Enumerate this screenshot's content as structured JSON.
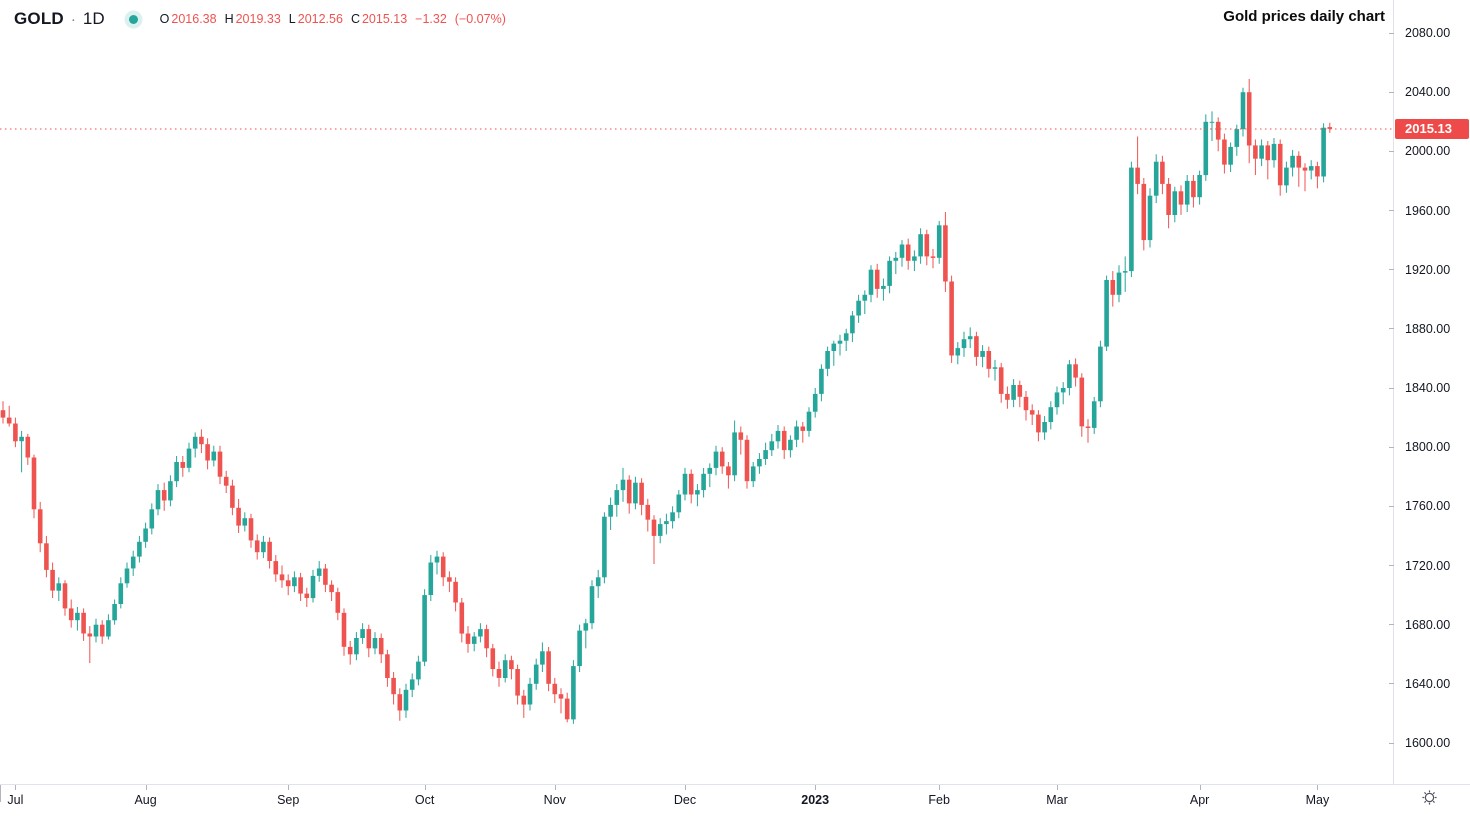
{
  "header": {
    "symbol": "GOLD",
    "separator": "·",
    "interval": "1D",
    "ohlc": {
      "open_label": "O",
      "open": "2016.38",
      "high_label": "H",
      "high": "2019.33",
      "low_label": "L",
      "low": "2012.56",
      "close_label": "C",
      "close": "2015.13",
      "change": "−1.32",
      "change_pct": "(−0.07%)"
    }
  },
  "title": "Gold prices daily chart",
  "colors": {
    "up": "#26a69a",
    "down": "#ef5350",
    "accent_red": "#ef4a4a",
    "text": "#131722",
    "muted": "#787b86",
    "axis_border": "#e0e3eb",
    "tick": "#b2b5be"
  },
  "price_axis": {
    "current_price_label": "2015.13"
  },
  "chart_data": {
    "type": "candlestick",
    "title": "Gold prices daily chart",
    "symbol": "GOLD",
    "interval": "1D",
    "current_price": 2015.13,
    "ylim": [
      1600,
      2080
    ],
    "grid": false,
    "price_ticks": [
      "2080.00",
      "2040.00",
      "2000.00",
      "1960.00",
      "1920.00",
      "1880.00",
      "1840.00",
      "1800.00",
      "1760.00",
      "1720.00",
      "1680.00",
      "1640.00",
      "1600.00"
    ],
    "months": [
      {
        "label": "Jul",
        "index": 2
      },
      {
        "label": "Aug",
        "index": 23
      },
      {
        "label": "Sep",
        "index": 46
      },
      {
        "label": "Oct",
        "index": 68
      },
      {
        "label": "Nov",
        "index": 89
      },
      {
        "label": "Dec",
        "index": 110
      },
      {
        "label": "2023",
        "index": 131,
        "bold": true
      },
      {
        "label": "Feb",
        "index": 151
      },
      {
        "label": "Mar",
        "index": 170
      },
      {
        "label": "Apr",
        "index": 193
      },
      {
        "label": "May",
        "index": 212
      }
    ],
    "ohlc": [
      [
        1825,
        1831,
        1816,
        1820
      ],
      [
        1820,
        1828,
        1814,
        1816
      ],
      [
        1816,
        1820,
        1800,
        1804
      ],
      [
        1804,
        1811,
        1783,
        1807
      ],
      [
        1807,
        1809,
        1788,
        1793
      ],
      [
        1793,
        1795,
        1752,
        1758
      ],
      [
        1758,
        1763,
        1729,
        1735
      ],
      [
        1735,
        1740,
        1712,
        1717
      ],
      [
        1717,
        1722,
        1698,
        1703
      ],
      [
        1703,
        1712,
        1696,
        1708
      ],
      [
        1708,
        1710,
        1686,
        1691
      ],
      [
        1691,
        1697,
        1678,
        1683
      ],
      [
        1683,
        1692,
        1676,
        1688
      ],
      [
        1688,
        1691,
        1669,
        1674
      ],
      [
        1674,
        1679,
        1654,
        1672
      ],
      [
        1672,
        1684,
        1668,
        1680
      ],
      [
        1680,
        1683,
        1667,
        1672
      ],
      [
        1672,
        1687,
        1670,
        1683
      ],
      [
        1683,
        1697,
        1680,
        1694
      ],
      [
        1694,
        1712,
        1691,
        1708
      ],
      [
        1708,
        1722,
        1705,
        1718
      ],
      [
        1718,
        1730,
        1713,
        1726
      ],
      [
        1726,
        1740,
        1722,
        1736
      ],
      [
        1736,
        1749,
        1732,
        1745
      ],
      [
        1745,
        1762,
        1741,
        1758
      ],
      [
        1758,
        1775,
        1754,
        1771
      ],
      [
        1771,
        1776,
        1757,
        1764
      ],
      [
        1764,
        1781,
        1760,
        1777
      ],
      [
        1777,
        1794,
        1773,
        1790
      ],
      [
        1790,
        1794,
        1780,
        1786
      ],
      [
        1786,
        1803,
        1783,
        1799
      ],
      [
        1799,
        1810,
        1793,
        1807
      ],
      [
        1807,
        1812,
        1796,
        1802
      ],
      [
        1802,
        1806,
        1785,
        1791
      ],
      [
        1791,
        1801,
        1787,
        1797
      ],
      [
        1797,
        1801,
        1775,
        1780
      ],
      [
        1780,
        1784,
        1769,
        1774
      ],
      [
        1774,
        1778,
        1754,
        1759
      ],
      [
        1759,
        1765,
        1742,
        1747
      ],
      [
        1747,
        1756,
        1743,
        1752
      ],
      [
        1752,
        1755,
        1732,
        1737
      ],
      [
        1737,
        1741,
        1724,
        1729
      ],
      [
        1729,
        1740,
        1725,
        1736
      ],
      [
        1736,
        1739,
        1718,
        1723
      ],
      [
        1723,
        1727,
        1709,
        1714
      ],
      [
        1714,
        1720,
        1705,
        1710
      ],
      [
        1710,
        1714,
        1700,
        1706
      ],
      [
        1706,
        1716,
        1702,
        1712
      ],
      [
        1712,
        1715,
        1696,
        1701
      ],
      [
        1701,
        1705,
        1692,
        1698
      ],
      [
        1698,
        1717,
        1695,
        1713
      ],
      [
        1713,
        1723,
        1709,
        1718
      ],
      [
        1718,
        1721,
        1702,
        1707
      ],
      [
        1707,
        1710,
        1696,
        1702
      ],
      [
        1702,
        1705,
        1683,
        1688
      ],
      [
        1688,
        1691,
        1659,
        1665
      ],
      [
        1665,
        1669,
        1653,
        1660
      ],
      [
        1660,
        1675,
        1656,
        1671
      ],
      [
        1671,
        1681,
        1667,
        1677
      ],
      [
        1677,
        1680,
        1658,
        1664
      ],
      [
        1664,
        1675,
        1660,
        1671
      ],
      [
        1671,
        1674,
        1654,
        1660
      ],
      [
        1660,
        1663,
        1638,
        1644
      ],
      [
        1644,
        1648,
        1626,
        1633
      ],
      [
        1633,
        1637,
        1615,
        1622
      ],
      [
        1622,
        1640,
        1617,
        1636
      ],
      [
        1636,
        1647,
        1631,
        1643
      ],
      [
        1643,
        1659,
        1639,
        1655
      ],
      [
        1655,
        1704,
        1652,
        1700
      ],
      [
        1700,
        1727,
        1696,
        1722
      ],
      [
        1722,
        1730,
        1714,
        1726
      ],
      [
        1726,
        1729,
        1706,
        1712
      ],
      [
        1712,
        1716,
        1702,
        1709
      ],
      [
        1709,
        1712,
        1689,
        1695
      ],
      [
        1695,
        1698,
        1668,
        1674
      ],
      [
        1674,
        1679,
        1661,
        1667
      ],
      [
        1667,
        1675,
        1662,
        1672
      ],
      [
        1672,
        1681,
        1668,
        1677
      ],
      [
        1677,
        1680,
        1658,
        1664
      ],
      [
        1664,
        1667,
        1645,
        1650
      ],
      [
        1650,
        1655,
        1638,
        1644
      ],
      [
        1644,
        1660,
        1641,
        1656
      ],
      [
        1656,
        1659,
        1643,
        1650
      ],
      [
        1650,
        1653,
        1626,
        1632
      ],
      [
        1632,
        1636,
        1617,
        1626
      ],
      [
        1626,
        1644,
        1622,
        1640
      ],
      [
        1640,
        1657,
        1636,
        1653
      ],
      [
        1653,
        1668,
        1648,
        1662
      ],
      [
        1662,
        1665,
        1635,
        1640
      ],
      [
        1640,
        1644,
        1627,
        1633
      ],
      [
        1633,
        1637,
        1620,
        1630
      ],
      [
        1630,
        1634,
        1614,
        1616
      ],
      [
        1616,
        1656,
        1613,
        1652
      ],
      [
        1652,
        1680,
        1648,
        1676
      ],
      [
        1676,
        1684,
        1664,
        1681
      ],
      [
        1681,
        1710,
        1677,
        1706
      ],
      [
        1706,
        1717,
        1698,
        1712
      ],
      [
        1712,
        1756,
        1708,
        1753
      ],
      [
        1753,
        1766,
        1744,
        1761
      ],
      [
        1761,
        1775,
        1753,
        1771
      ],
      [
        1771,
        1786,
        1763,
        1778
      ],
      [
        1778,
        1781,
        1755,
        1762
      ],
      [
        1762,
        1780,
        1758,
        1776
      ],
      [
        1776,
        1779,
        1754,
        1761
      ],
      [
        1761,
        1765,
        1743,
        1751
      ],
      [
        1751,
        1754,
        1721,
        1740
      ],
      [
        1740,
        1752,
        1735,
        1748
      ],
      [
        1748,
        1755,
        1741,
        1750
      ],
      [
        1750,
        1760,
        1745,
        1756
      ],
      [
        1756,
        1771,
        1752,
        1768
      ],
      [
        1768,
        1786,
        1764,
        1782
      ],
      [
        1782,
        1785,
        1762,
        1768
      ],
      [
        1768,
        1775,
        1760,
        1771
      ],
      [
        1771,
        1786,
        1766,
        1782
      ],
      [
        1782,
        1789,
        1773,
        1786
      ],
      [
        1786,
        1801,
        1781,
        1797
      ],
      [
        1797,
        1800,
        1782,
        1787
      ],
      [
        1787,
        1790,
        1772,
        1781
      ],
      [
        1781,
        1818,
        1777,
        1810
      ],
      [
        1810,
        1814,
        1795,
        1805
      ],
      [
        1805,
        1808,
        1772,
        1777
      ],
      [
        1777,
        1790,
        1773,
        1787
      ],
      [
        1787,
        1796,
        1782,
        1792
      ],
      [
        1792,
        1803,
        1788,
        1798
      ],
      [
        1798,
        1809,
        1794,
        1804
      ],
      [
        1804,
        1815,
        1799,
        1811
      ],
      [
        1811,
        1814,
        1792,
        1798
      ],
      [
        1798,
        1808,
        1793,
        1805
      ],
      [
        1805,
        1818,
        1800,
        1814
      ],
      [
        1814,
        1817,
        1803,
        1811
      ],
      [
        1811,
        1827,
        1807,
        1824
      ],
      [
        1824,
        1840,
        1820,
        1836
      ],
      [
        1836,
        1856,
        1831,
        1853
      ],
      [
        1853,
        1868,
        1848,
        1865
      ],
      [
        1865,
        1872,
        1855,
        1870
      ],
      [
        1870,
        1876,
        1862,
        1872
      ],
      [
        1872,
        1880,
        1865,
        1877
      ],
      [
        1877,
        1892,
        1871,
        1889
      ],
      [
        1889,
        1903,
        1884,
        1899
      ],
      [
        1899,
        1906,
        1890,
        1903
      ],
      [
        1903,
        1923,
        1898,
        1920
      ],
      [
        1920,
        1924,
        1901,
        1907
      ],
      [
        1907,
        1914,
        1899,
        1909
      ],
      [
        1909,
        1929,
        1904,
        1926
      ],
      [
        1926,
        1932,
        1917,
        1928
      ],
      [
        1928,
        1940,
        1922,
        1937
      ],
      [
        1937,
        1941,
        1920,
        1926
      ],
      [
        1926,
        1933,
        1919,
        1929
      ],
      [
        1929,
        1948,
        1924,
        1944
      ],
      [
        1944,
        1947,
        1923,
        1929
      ],
      [
        1929,
        1934,
        1921,
        1928
      ],
      [
        1928,
        1953,
        1924,
        1950
      ],
      [
        1950,
        1959,
        1905,
        1912
      ],
      [
        1912,
        1916,
        1857,
        1862
      ],
      [
        1862,
        1871,
        1856,
        1867
      ],
      [
        1867,
        1878,
        1861,
        1873
      ],
      [
        1873,
        1881,
        1867,
        1875
      ],
      [
        1875,
        1878,
        1855,
        1861
      ],
      [
        1861,
        1869,
        1854,
        1865
      ],
      [
        1865,
        1868,
        1847,
        1853
      ],
      [
        1853,
        1859,
        1845,
        1854
      ],
      [
        1854,
        1857,
        1830,
        1836
      ],
      [
        1836,
        1841,
        1826,
        1832
      ],
      [
        1832,
        1846,
        1827,
        1842
      ],
      [
        1842,
        1845,
        1827,
        1834
      ],
      [
        1834,
        1838,
        1818,
        1825
      ],
      [
        1825,
        1829,
        1815,
        1822
      ],
      [
        1822,
        1825,
        1804,
        1810
      ],
      [
        1810,
        1821,
        1805,
        1817
      ],
      [
        1817,
        1831,
        1812,
        1827
      ],
      [
        1827,
        1841,
        1822,
        1837
      ],
      [
        1837,
        1844,
        1829,
        1840
      ],
      [
        1840,
        1859,
        1835,
        1856
      ],
      [
        1856,
        1860,
        1841,
        1847
      ],
      [
        1847,
        1850,
        1807,
        1814
      ],
      [
        1814,
        1819,
        1803,
        1813
      ],
      [
        1813,
        1834,
        1809,
        1831
      ],
      [
        1831,
        1872,
        1827,
        1868
      ],
      [
        1868,
        1916,
        1865,
        1913
      ],
      [
        1913,
        1919,
        1895,
        1903
      ],
      [
        1903,
        1923,
        1898,
        1918
      ],
      [
        1918,
        1929,
        1905,
        1919
      ],
      [
        1919,
        1993,
        1915,
        1989
      ],
      [
        1989,
        2010,
        1971,
        1978
      ],
      [
        1978,
        1982,
        1933,
        1940
      ],
      [
        1940,
        1975,
        1935,
        1970
      ],
      [
        1970,
        1998,
        1965,
        1993
      ],
      [
        1993,
        1997,
        1971,
        1978
      ],
      [
        1978,
        1982,
        1948,
        1957
      ],
      [
        1957,
        1976,
        1952,
        1973
      ],
      [
        1973,
        1977,
        1957,
        1964
      ],
      [
        1964,
        1984,
        1959,
        1980
      ],
      [
        1980,
        1984,
        1962,
        1969
      ],
      [
        1969,
        1987,
        1964,
        1984
      ],
      [
        1984,
        2025,
        1980,
        2020
      ],
      [
        2020,
        2027,
        2007,
        2020
      ],
      [
        2020,
        2023,
        2000,
        2008
      ],
      [
        2008,
        2012,
        1985,
        1991
      ],
      [
        1991,
        2006,
        1986,
        2003
      ],
      [
        2003,
        2018,
        1997,
        2015
      ],
      [
        2015,
        2043,
        2010,
        2040
      ],
      [
        2040,
        2049,
        1992,
        2004
      ],
      [
        2004,
        2008,
        1984,
        1995
      ],
      [
        1995,
        2008,
        1990,
        2004
      ],
      [
        2004,
        2007,
        1981,
        1994
      ],
      [
        1994,
        2009,
        1989,
        2005
      ],
      [
        2005,
        2008,
        1970,
        1977
      ],
      [
        1977,
        1993,
        1972,
        1989
      ],
      [
        1989,
        2001,
        1983,
        1997
      ],
      [
        1997,
        2000,
        1976,
        1989
      ],
      [
        1989,
        1992,
        1973,
        1987
      ],
      [
        1987,
        1994,
        1981,
        1990
      ],
      [
        1990,
        1993,
        1975,
        1983
      ],
      [
        1983,
        2019,
        1979,
        2016
      ],
      [
        2016.38,
        2019.33,
        2012.56,
        2015.13
      ]
    ]
  }
}
